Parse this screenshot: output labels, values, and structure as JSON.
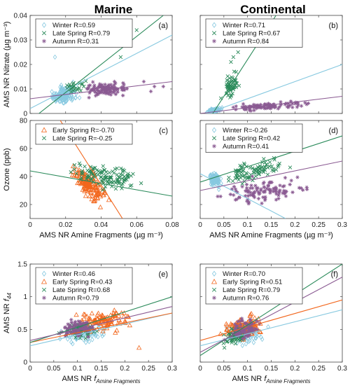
{
  "column_titles": {
    "left": "Marine",
    "right": "Continental"
  },
  "colors": {
    "Winter": "#87c9e0",
    "Early Spring": "#f2661c",
    "Late Spring": "#2a8a5a",
    "Autumn": "#8a5a92"
  },
  "chart_data": [
    {
      "id": "a",
      "type": "scatter",
      "panel_label": "(a)",
      "xlim": [
        0,
        0.08
      ],
      "ylim": [
        0,
        0.04
      ],
      "xticks": [
        0,
        0.02,
        0.04,
        0.06,
        0.08
      ],
      "yticks": [
        0,
        0.01,
        0.02,
        0.03,
        0.04
      ],
      "xtick_labels": [],
      "ytick_labels": [
        "0",
        "0.01",
        "0.02",
        "0.03",
        "0.04"
      ],
      "xlabel": "",
      "ylabel": "AMS NR Nitrate (µg m⁻³)",
      "legend_position": "top-left",
      "series": [
        {
          "name": "Winter",
          "legend": "Winter R=0.59",
          "marker": "diamond",
          "cluster": {
            "x": [
              0.008,
              0.03
            ],
            "y": [
              0.001,
              0.014
            ],
            "n": 140
          },
          "extra_points": [
            [
              0.014,
              0.023
            ]
          ],
          "fit": [
            [
              0,
              0.002
            ],
            [
              0.08,
              0.032
            ]
          ]
        },
        {
          "name": "Late Spring",
          "legend": "Late Spring R=0.79",
          "marker": "x",
          "cluster": {
            "x": [
              0.012,
              0.035
            ],
            "y": [
              0.005,
              0.016
            ],
            "n": 25
          },
          "extra_points": [
            [
              0.045,
              0.031
            ],
            [
              0.06,
              0.034
            ],
            [
              0.051,
              0.023
            ]
          ],
          "fit": [
            [
              0.005,
              0.0
            ],
            [
              0.075,
              0.04
            ]
          ]
        },
        {
          "name": "Autumn",
          "legend": "Autumn R=0.31",
          "marker": "star",
          "cluster": {
            "x": [
              0.025,
              0.06
            ],
            "y": [
              0.005,
              0.015
            ],
            "n": 110
          },
          "extra_points": [
            [
              0.068,
              0.009
            ],
            [
              0.07,
              0.011
            ],
            [
              0.064,
              0.013
            ],
            [
              0.075,
              0.011
            ]
          ],
          "fit": [
            [
              0,
              0.006
            ],
            [
              0.08,
              0.013
            ]
          ]
        }
      ]
    },
    {
      "id": "b",
      "type": "scatter",
      "panel_label": "(b)",
      "xlim": [
        0,
        0.3
      ],
      "ylim": [
        0,
        0.04
      ],
      "xticks": [
        0,
        0.05,
        0.1,
        0.15,
        0.2,
        0.25,
        0.3
      ],
      "yticks": [
        0,
        0.01,
        0.02,
        0.03,
        0.04
      ],
      "xtick_labels": [],
      "ytick_labels": [],
      "xlabel": "",
      "ylabel": "",
      "legend_position": "top-left",
      "series": [
        {
          "name": "Winter",
          "legend": "Winter R=0.71",
          "marker": "diamond",
          "cluster": {
            "x": [
              0.01,
              0.05
            ],
            "y": [
              0.0,
              0.0025
            ],
            "n": 110
          },
          "extra_points": [],
          "fit": [
            [
              0,
              -0.001
            ],
            [
              0.3,
              0.02
            ]
          ]
        },
        {
          "name": "Late Spring",
          "legend": "Late Spring R=0.67",
          "marker": "x",
          "cluster": {
            "x": [
              0.04,
              0.09
            ],
            "y": [
              0.002,
              0.02
            ],
            "n": 55
          },
          "extra_points": [
            [
              0.07,
              0.023
            ],
            [
              0.08,
              0.025
            ],
            [
              0.065,
              0.021
            ]
          ],
          "fit": [
            [
              0.02,
              -0.002
            ],
            [
              0.16,
              0.04
            ]
          ]
        },
        {
          "name": "Autumn",
          "legend": "Autumn R=0.84",
          "marker": "star",
          "cluster": {
            "x": [
              0.02,
              0.27
            ],
            "y": [
              0.0,
              0.006
            ],
            "n": 95
          },
          "extra_points": [],
          "fit": [
            [
              0,
              0.0
            ],
            [
              0.3,
              0.007
            ]
          ]
        }
      ]
    },
    {
      "id": "c",
      "type": "scatter",
      "panel_label": "(c)",
      "xlim": [
        0,
        0.08
      ],
      "ylim": [
        10,
        80
      ],
      "xticks": [
        0,
        0.02,
        0.04,
        0.06,
        0.08
      ],
      "yticks": [
        20,
        40,
        60,
        80
      ],
      "xtick_labels": [
        "0",
        "0.02",
        "0.04",
        "0.06",
        "0.08"
      ],
      "ytick_labels": [
        "20",
        "40",
        "60",
        "80"
      ],
      "xlabel": "AMS NR Amine Fragments (µg m⁻³)",
      "ylabel": "Ozone (ppb)",
      "legend_position": "top-left",
      "series": [
        {
          "name": "Early Spring",
          "legend": "Early Spring R=-0.70",
          "marker": "triangle",
          "cluster": {
            "x": [
              0.018,
              0.048
            ],
            "y": [
              17,
              52
            ],
            "n": 150
          },
          "extra_points": [],
          "fit": [
            [
              0.017,
              80
            ],
            [
              0.052,
              10
            ]
          ]
        },
        {
          "name": "Late Spring",
          "legend": "Late Spring R=-0.25",
          "marker": "x",
          "cluster": {
            "x": [
              0.01,
              0.075
            ],
            "y": [
              25,
              55
            ],
            "n": 120
          },
          "extra_points": [],
          "fit": [
            [
              0,
              44
            ],
            [
              0.08,
              26
            ]
          ]
        }
      ]
    },
    {
      "id": "d",
      "type": "scatter",
      "panel_label": "(d)",
      "xlim": [
        0,
        0.3
      ],
      "ylim": [
        10,
        80
      ],
      "xticks": [
        0,
        0.05,
        0.1,
        0.15,
        0.2,
        0.25,
        0.3
      ],
      "yticks": [
        20,
        40,
        60,
        80
      ],
      "xtick_labels": [
        "0",
        "0.05",
        "0.1",
        "0.15",
        "0.2",
        "0.25",
        "0.3"
      ],
      "ytick_labels": [],
      "xlabel": "AMS NR Amine Fragments (µg m⁻³)",
      "ylabel": "",
      "legend_position": "top-left",
      "series": [
        {
          "name": "Winter",
          "legend": "Winter R=-0.26",
          "marker": "diamond",
          "cluster": {
            "x": [
              0.01,
              0.05
            ],
            "y": [
              28,
              48
            ],
            "n": 90
          },
          "extra_points": [],
          "fit": [
            [
              0,
              42
            ],
            [
              0.18,
              10
            ]
          ]
        },
        {
          "name": "Late Spring",
          "legend": "Late Spring R=0.42",
          "marker": "x",
          "cluster": {
            "x": [
              0.02,
              0.2
            ],
            "y": [
              30,
              58
            ],
            "n": 95
          },
          "extra_points": [],
          "fit": [
            [
              0,
              36
            ],
            [
              0.3,
              69
            ]
          ]
        },
        {
          "name": "Autumn",
          "legend": "Autumn R=0.41",
          "marker": "star",
          "cluster": {
            "x": [
              0.01,
              0.27
            ],
            "y": [
              15,
              45
            ],
            "n": 110
          },
          "extra_points": [],
          "fit": [
            [
              0,
              30
            ],
            [
              0.3,
              51
            ]
          ]
        }
      ]
    },
    {
      "id": "e",
      "type": "scatter",
      "panel_label": "(e)",
      "xlim": [
        0,
        0.3
      ],
      "ylim": [
        0,
        1.5
      ],
      "xticks": [
        0,
        0.05,
        0.1,
        0.15,
        0.2,
        0.25,
        0.3
      ],
      "yticks": [
        0,
        0.5,
        1,
        1.5
      ],
      "xtick_labels": [
        "0",
        "0.05",
        "0.1",
        "0.15",
        "0.2",
        "0.25",
        "0.3"
      ],
      "ytick_labels": [
        "0",
        "0.5",
        "1",
        "1.5"
      ],
      "xlabel": "AMS NR f_Amine Fragments",
      "ylabel": "AMS NR f_44",
      "legend_position": "top-left",
      "series": [
        {
          "name": "Winter",
          "legend": "Winter R=0.46",
          "marker": "diamond",
          "cluster": {
            "x": [
              0.04,
              0.2
            ],
            "y": [
              0.15,
              0.7
            ],
            "n": 60
          },
          "extra_points": [],
          "fit": [
            [
              0,
              0.25
            ],
            [
              0.3,
              0.75
            ]
          ]
        },
        {
          "name": "Early Spring",
          "legend": "Early Spring R=0.43",
          "marker": "triangle",
          "cluster": {
            "x": [
              0.06,
              0.25
            ],
            "y": [
              0.3,
              0.95
            ],
            "n": 110
          },
          "extra_points": [
            [
              0.12,
              0.7
            ],
            [
              0.18,
              0.45
            ],
            [
              0.23,
              0.22
            ],
            [
              0.1,
              1.02
            ]
          ],
          "fit": [
            [
              0,
              0.3
            ],
            [
              0.3,
              0.75
            ]
          ]
        },
        {
          "name": "Late Spring",
          "legend": "Late Spring R=0.68",
          "marker": "x",
          "cluster": {
            "x": [
              0.05,
              0.16
            ],
            "y": [
              0.25,
              0.75
            ],
            "n": 80
          },
          "extra_points": [],
          "fit": [
            [
              0,
              0.3
            ],
            [
              0.3,
              1.0
            ]
          ]
        },
        {
          "name": "Autumn",
          "legend": "Autumn R=0.79",
          "marker": "star",
          "cluster": {
            "x": [
              0.05,
              0.15
            ],
            "y": [
              0.25,
              0.8
            ],
            "n": 80
          },
          "extra_points": [],
          "fit": [
            [
              0,
              0.33
            ],
            [
              0.3,
              0.85
            ]
          ]
        }
      ]
    },
    {
      "id": "f",
      "type": "scatter",
      "panel_label": "(f)",
      "xlim": [
        0,
        0.3
      ],
      "ylim": [
        0,
        1.5
      ],
      "xticks": [
        0,
        0.05,
        0.1,
        0.15,
        0.2,
        0.25,
        0.3
      ],
      "yticks": [
        0,
        0.5,
        1,
        1.5
      ],
      "xtick_labels": [
        "0",
        "0.05",
        "0.1",
        "0.15",
        "0.2",
        "0.25",
        "0.3"
      ],
      "ytick_labels": [],
      "xlabel": "AMS NR f_Amine Fragments",
      "ylabel": "",
      "legend_position": "top-left",
      "series": [
        {
          "name": "Winter",
          "legend": "Winter R=0.70",
          "marker": "diamond",
          "cluster": {
            "x": [
              0.03,
              0.16
            ],
            "y": [
              0.1,
              0.7
            ],
            "n": 60
          },
          "extra_points": [],
          "fit": [
            [
              0,
              0.25
            ],
            [
              0.3,
              0.8
            ]
          ]
        },
        {
          "name": "Early Spring",
          "legend": "Early Spring R=0.51",
          "marker": "triangle",
          "cluster": {
            "x": [
              0.03,
              0.15
            ],
            "y": [
              0.2,
              0.85
            ],
            "n": 130
          },
          "extra_points": [],
          "fit": [
            [
              0,
              0.33
            ],
            [
              0.3,
              0.95
            ]
          ]
        },
        {
          "name": "Late Spring",
          "legend": "Late Spring R=0.79",
          "marker": "x",
          "cluster": {
            "x": [
              0.03,
              0.12
            ],
            "y": [
              0.15,
              0.65
            ],
            "n": 80
          },
          "extra_points": [],
          "fit": [
            [
              0,
              0.1
            ],
            [
              0.3,
              1.5
            ]
          ]
        },
        {
          "name": "Autumn",
          "legend": "Autumn R=0.76",
          "marker": "star",
          "cluster": {
            "x": [
              0.04,
              0.14
            ],
            "y": [
              0.2,
              0.8
            ],
            "n": 80
          },
          "extra_points": [],
          "fit": [
            [
              0,
              0.15
            ],
            [
              0.3,
              1.3
            ]
          ]
        }
      ]
    }
  ]
}
